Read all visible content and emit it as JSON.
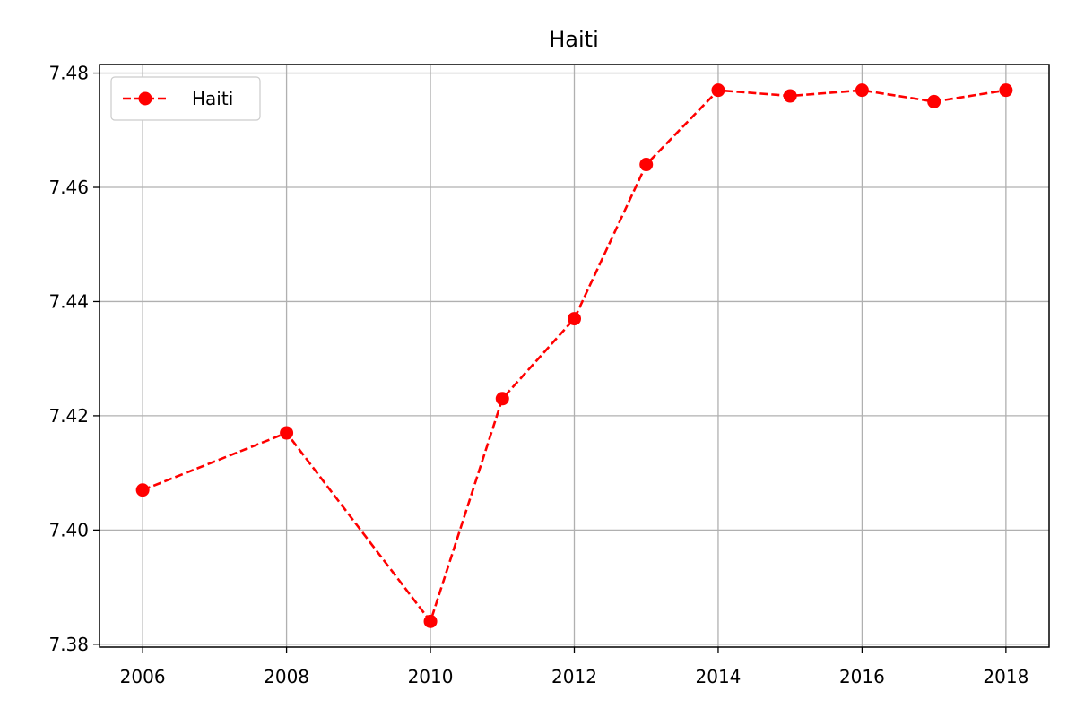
{
  "chart_data": {
    "type": "line",
    "title": "Haiti",
    "xlabel": "",
    "ylabel": "",
    "x": [
      2006,
      2008,
      2010,
      2011,
      2012,
      2013,
      2014,
      2015,
      2016,
      2017,
      2018
    ],
    "series": [
      {
        "name": "Haiti",
        "values": [
          7.407,
          7.417,
          7.384,
          7.423,
          7.437,
          7.464,
          7.477,
          7.476,
          7.477,
          7.475,
          7.477
        ],
        "color": "#ff0000",
        "line_style": "dashed",
        "marker": "circle"
      }
    ],
    "xlim": [
      2005.4,
      2018.6
    ],
    "ylim": [
      7.3795,
      7.4815
    ],
    "xticks": [
      "2006",
      "2008",
      "2010",
      "2012",
      "2014",
      "2016",
      "2018"
    ],
    "yticks": [
      "7.38",
      "7.40",
      "7.42",
      "7.44",
      "7.46",
      "7.48"
    ],
    "grid": true,
    "legend_position": "top-left"
  }
}
